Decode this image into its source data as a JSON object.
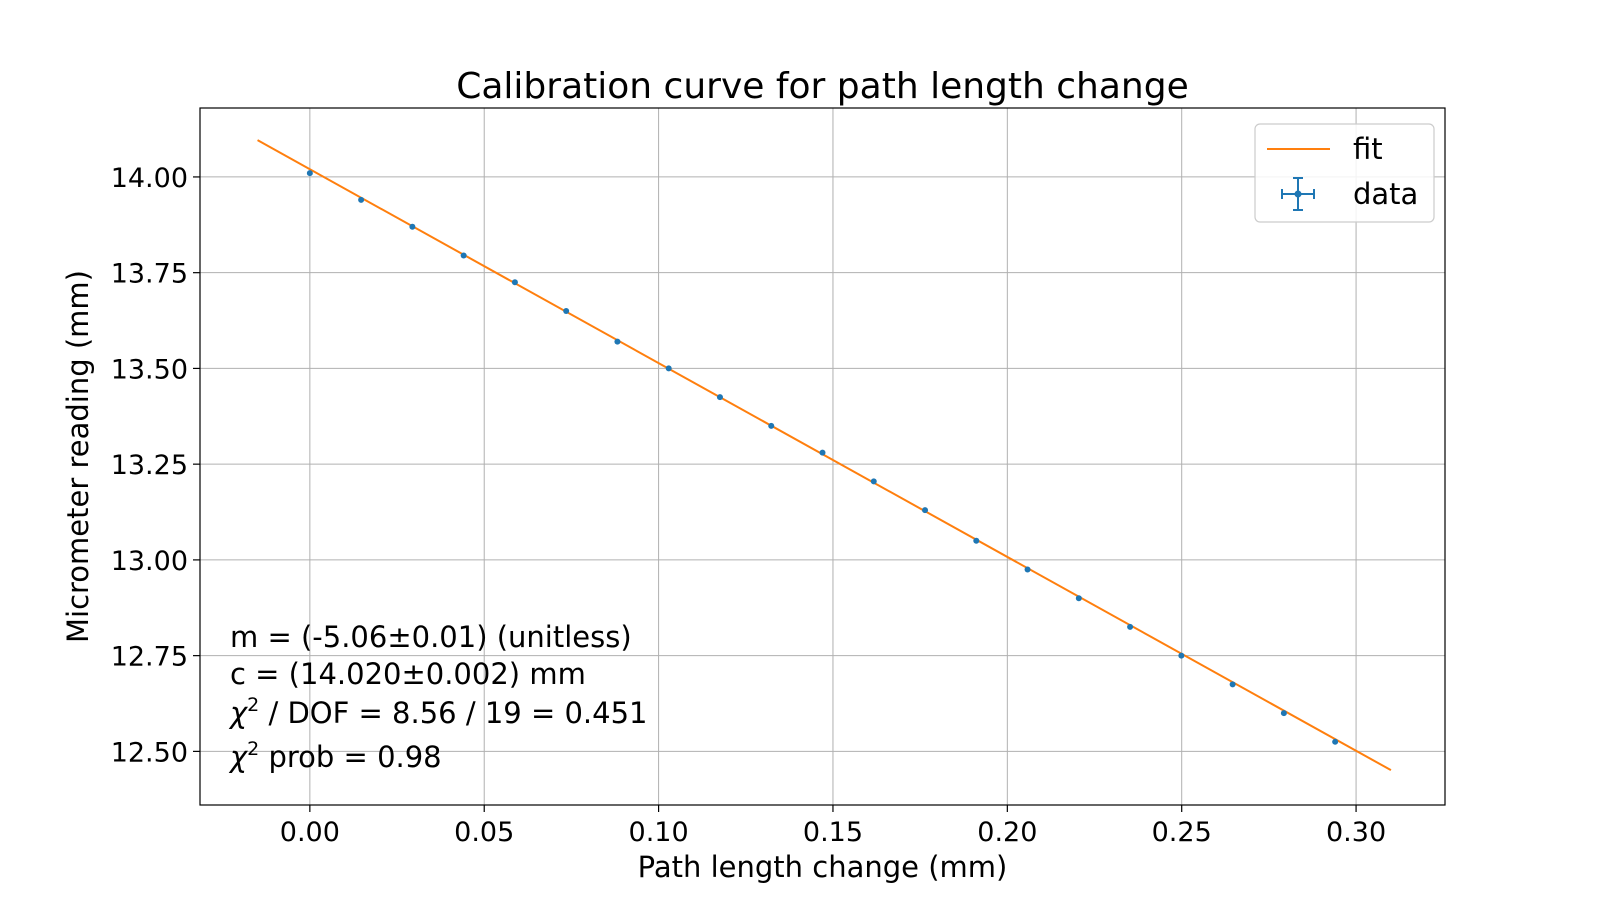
{
  "chart_data": {
    "type": "scatter",
    "title": "Calibration curve for path length change",
    "xlabel": "Path length change (mm)",
    "ylabel": "Micrometer reading (mm)",
    "xlim": [
      -0.0315,
      0.3255
    ],
    "ylim": [
      12.36,
      14.18
    ],
    "grid": true,
    "legend_position": "top-right",
    "x_ticks": [
      0.0,
      0.05,
      0.1,
      0.15,
      0.2,
      0.25,
      0.3
    ],
    "x_tick_labels": [
      "0.00",
      "0.05",
      "0.10",
      "0.15",
      "0.20",
      "0.25",
      "0.30"
    ],
    "y_ticks": [
      12.5,
      12.75,
      13.0,
      13.25,
      13.5,
      13.75,
      14.0
    ],
    "y_tick_labels": [
      "12.50",
      "12.75",
      "13.00",
      "13.25",
      "13.50",
      "13.75",
      "14.00"
    ],
    "series": [
      {
        "name": "fit",
        "kind": "line",
        "color": "#ff7f0e",
        "x": [
          -0.015,
          0.31
        ],
        "y": [
          14.096,
          12.451
        ]
      },
      {
        "name": "data",
        "kind": "errorbar",
        "color": "#1f77b4",
        "x": [
          0.0,
          0.0147,
          0.0294,
          0.0441,
          0.0588,
          0.0735,
          0.0882,
          0.1029,
          0.1176,
          0.1323,
          0.147,
          0.1617,
          0.1764,
          0.1911,
          0.2058,
          0.2205,
          0.2352,
          0.2499,
          0.2646,
          0.2793,
          0.294
        ],
        "y": [
          14.01,
          13.94,
          13.87,
          13.795,
          13.725,
          13.65,
          13.57,
          13.5,
          13.425,
          13.35,
          13.28,
          13.205,
          13.13,
          13.05,
          12.975,
          12.9,
          12.825,
          12.75,
          12.675,
          12.6,
          12.525
        ]
      }
    ],
    "annotations": [
      {
        "prefix": "",
        "text": "m = (-5.06±0.01) (unitless)"
      },
      {
        "prefix": "",
        "text": "c = (14.020±0.002) mm"
      },
      {
        "prefix": "χ",
        "sup": "2",
        "text": " / DOF = 8.56 / 19 = 0.451"
      },
      {
        "prefix": "χ",
        "sup": "2",
        "text": " prob = 0.98"
      }
    ]
  }
}
